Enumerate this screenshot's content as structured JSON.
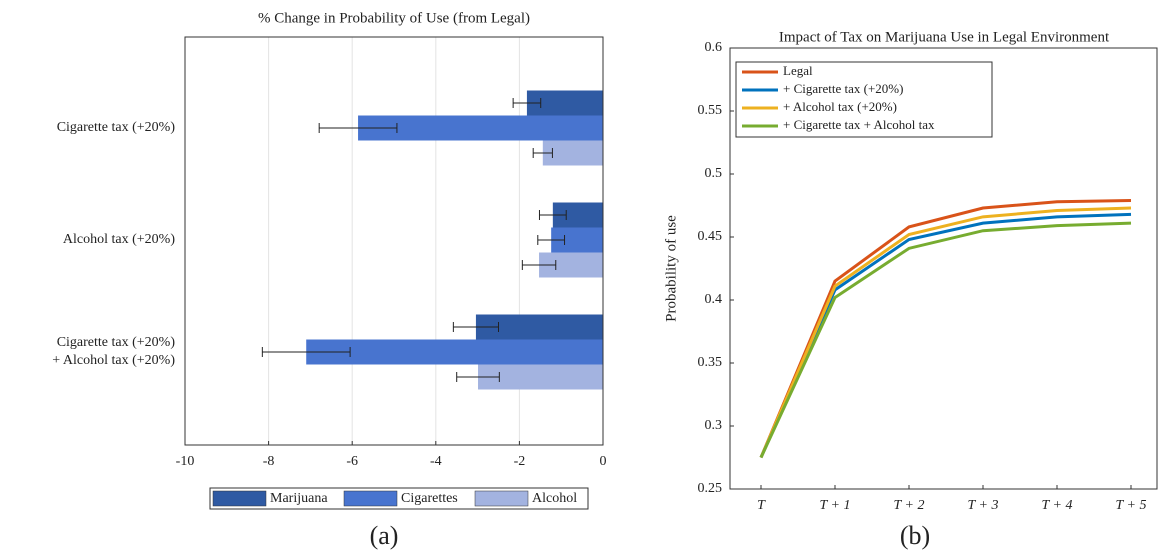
{
  "chart_data": [
    {
      "type": "bar",
      "orientation": "horizontal",
      "title": "% Change in Probability of Use (from Legal)",
      "categories": [
        [
          "Cigarette tax (+20%)"
        ],
        [
          "Alcohol tax (+20%)"
        ],
        [
          "Cigarette tax (+20%)",
          "+ Alcohol tax (+20%)"
        ]
      ],
      "series": [
        {
          "name": "Marijuana",
          "color": "#2f5aa3",
          "values": [
            -1.82,
            -1.2,
            -3.04
          ],
          "errors": [
            0.33,
            0.32,
            0.54
          ]
        },
        {
          "name": "Cigarettes",
          "color": "#4874cf",
          "values": [
            -5.86,
            -1.24,
            -7.1
          ],
          "errors": [
            0.93,
            0.32,
            1.05
          ]
        },
        {
          "name": "Alcohol",
          "color": "#a3b3e0",
          "values": [
            -1.44,
            -1.53,
            -2.99
          ],
          "errors": [
            0.23,
            0.4,
            0.51
          ]
        }
      ],
      "xlim": [
        -10,
        0
      ],
      "xticks": [
        -10,
        -8,
        -6,
        -4,
        -2,
        0
      ],
      "grid": true,
      "legend": "bottom",
      "caption": "(a)"
    },
    {
      "type": "line",
      "title": "Impact of Tax on Marijuana Use in Legal Environment",
      "ylabel": "Probability of use",
      "categories": [
        "T",
        "T + 1",
        "T + 2",
        "T + 3",
        "T + 4",
        "T + 5"
      ],
      "series": [
        {
          "name": "Legal",
          "color": "#d95319",
          "values": [
            0.275,
            0.415,
            0.458,
            0.473,
            0.478,
            0.479
          ]
        },
        {
          "name": "+ Cigarette tax (+20%)",
          "color": "#0072bd",
          "values": [
            0.275,
            0.408,
            0.448,
            0.461,
            0.466,
            0.468
          ]
        },
        {
          "name": "+ Alcohol tax (+20%)",
          "color": "#edb120",
          "values": [
            0.275,
            0.411,
            0.452,
            0.466,
            0.471,
            0.473
          ]
        },
        {
          "name": "+ Cigarette tax + Alcohol tax",
          "color": "#77ac30",
          "values": [
            0.275,
            0.402,
            0.441,
            0.455,
            0.459,
            0.461
          ]
        }
      ],
      "ylim": [
        0.25,
        0.6
      ],
      "yticks": [
        0.25,
        0.3,
        0.35,
        0.4,
        0.45,
        0.5,
        0.55,
        0.6
      ],
      "grid": false,
      "legend": "upper left",
      "caption": "(b)"
    }
  ]
}
